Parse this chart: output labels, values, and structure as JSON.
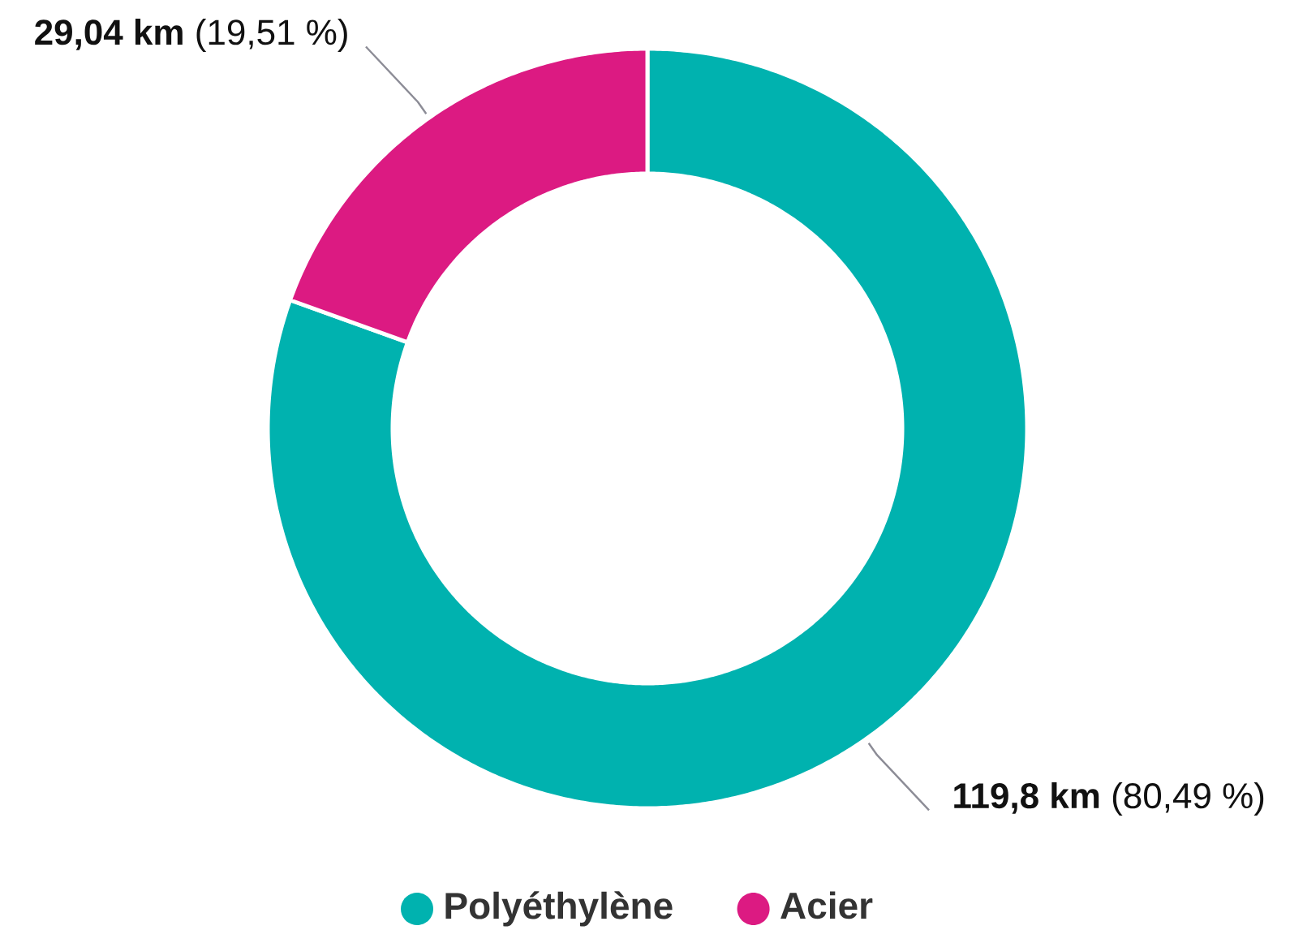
{
  "chart_data": {
    "type": "donut",
    "categories": [
      "Polyéthylène",
      "Acier"
    ],
    "values": [
      119.8,
      29.04
    ],
    "colors": [
      "#00b2af",
      "#dc1a82"
    ],
    "value_labels": [
      "**119,8 km** (80,49 %)",
      "**29,04 km** (19,51 %)"
    ],
    "legend": "bottom"
  }
}
